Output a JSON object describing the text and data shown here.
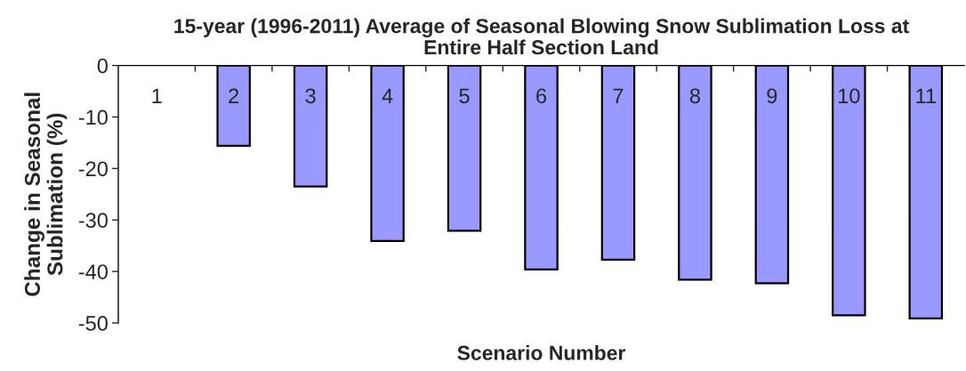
{
  "chart_data": {
    "type": "bar",
    "title": "15-year (1996-2011) Average of Seasonal Blowing Snow Sublimation Loss at\nEntire Half Section Land",
    "xlabel": "Scenario Number",
    "ylabel": "Change in Seasonal\nSublimation (%)",
    "categories": [
      "1",
      "2",
      "3",
      "4",
      "5",
      "6",
      "7",
      "8",
      "9",
      "10",
      "11"
    ],
    "values": [
      0,
      -15.6,
      -23.5,
      -34.1,
      -32.1,
      -39.6,
      -37.7,
      -41.6,
      -42.3,
      -48.5,
      -49.1
    ],
    "color": "#9999ff",
    "ylim": [
      -50,
      0
    ],
    "yticks": [
      -50,
      -40,
      -30,
      -20,
      -10,
      0
    ]
  }
}
